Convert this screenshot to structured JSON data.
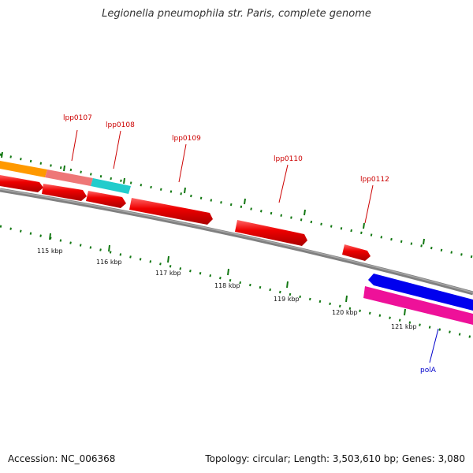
{
  "title": "Legionella pneumophila str. Paris, complete genome",
  "accession": "Accession: NC_006368",
  "summary": "Topology: circular; Length: 3,503,610 bp; Genes: 3,080",
  "colors": {
    "backbone": "#808080",
    "forward_gene": "#ee0000",
    "orange_feature": "#ff9900",
    "salmon_feature": "#ee7777",
    "cyan_feature": "#22cccc",
    "blue_feature": "#0000ee",
    "magenta_feature": "#ee1199",
    "tick_color": "#117711",
    "label_red": "#cc0000",
    "label_blue": "#0000cc"
  },
  "gene_labels": [
    "lpp0107",
    "lpp0108",
    "lpp0109",
    "lpp0110",
    "lpp0112"
  ],
  "other_labels": [
    "polA"
  ],
  "kbp_labels": [
    "115 kbp",
    "116 kbp",
    "117 kbp",
    "118 kbp",
    "119 kbp",
    "120 kbp",
    "121 kbp"
  ]
}
